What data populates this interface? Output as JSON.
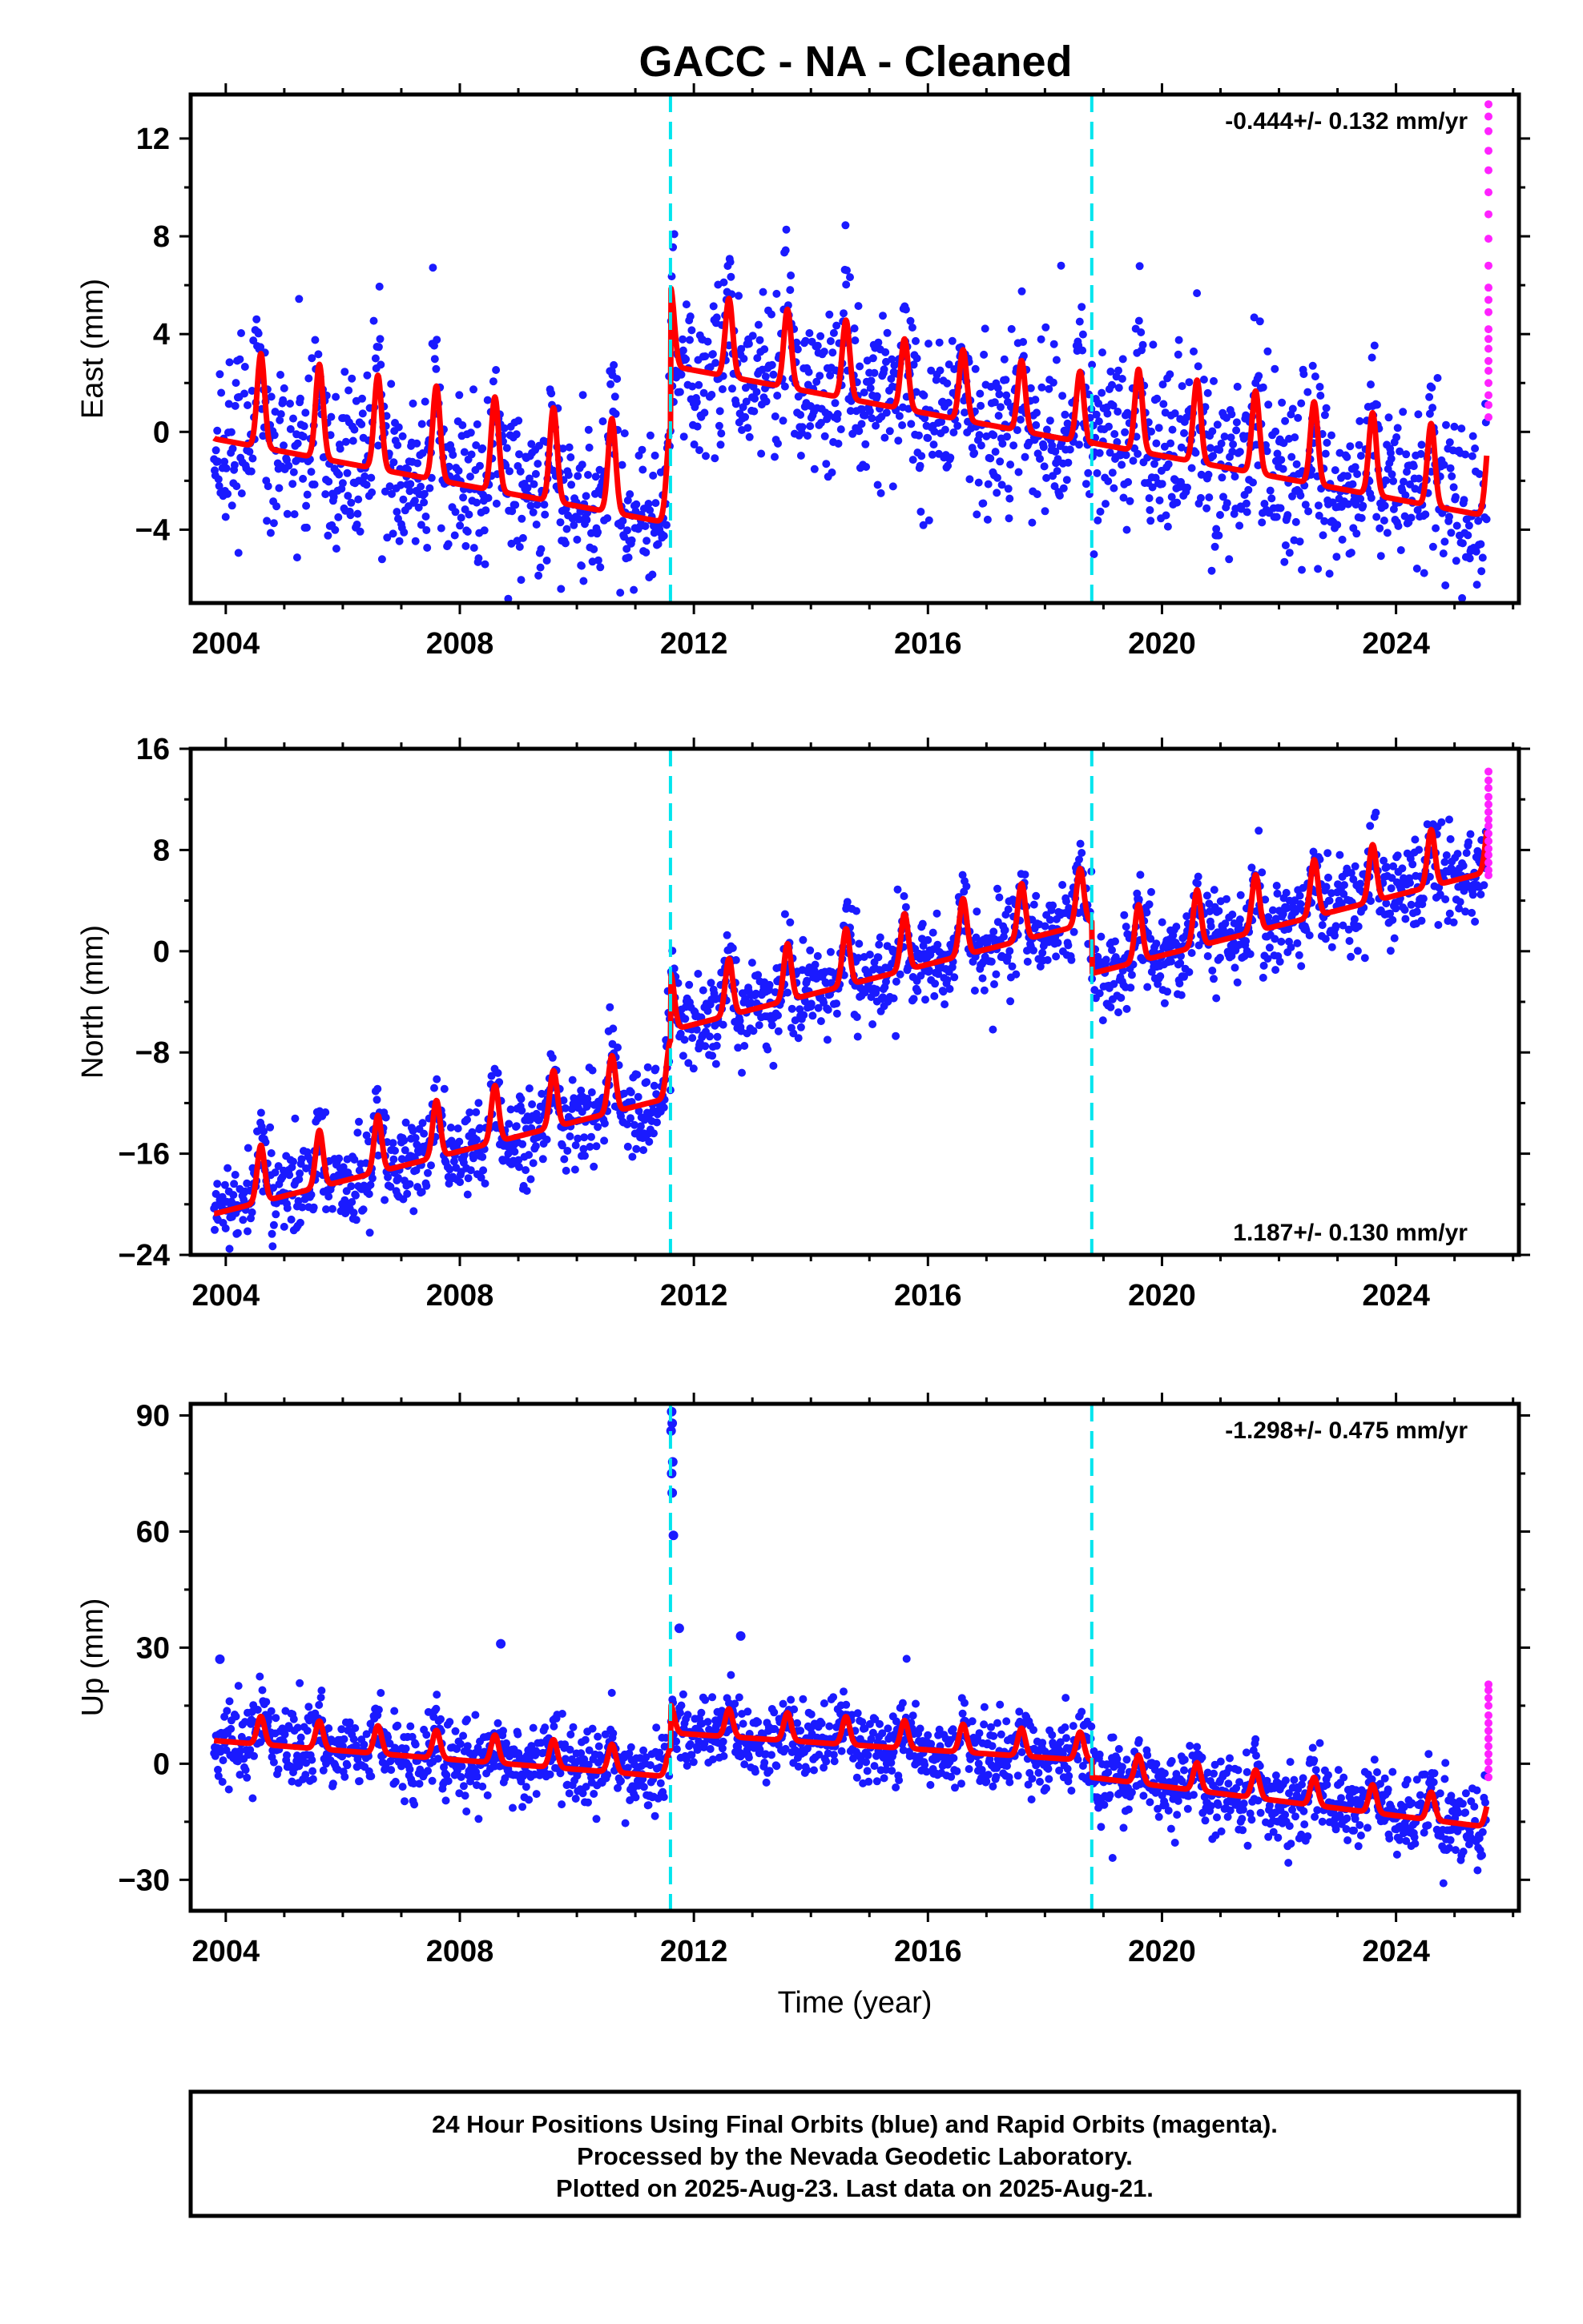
{
  "title": "GACC  - NA - Cleaned",
  "footer": {
    "lines": [
      "24 Hour Positions Using Final Orbits (blue) and Rapid Orbits (magenta).",
      "Processed by the Nevada Geodetic Laboratory.",
      "Plotted on 2025-Aug-23. Last data on 2025-Aug-21."
    ]
  },
  "colors": {
    "final": "#1a1aff",
    "rapid": "#ff22ff",
    "model": "#ff0000",
    "offset_line": "#00e5ee"
  },
  "chart_data": [
    {
      "type": "scatter",
      "ylabel": "East (mm)",
      "xlabel": "",
      "xlim": [
        2003.4,
        2026.1
      ],
      "ylim": [
        -7,
        13.8
      ],
      "xticks": [
        2004,
        2008,
        2012,
        2016,
        2020,
        2024
      ],
      "yticks": [
        12,
        8,
        4,
        0,
        -4
      ],
      "ytick_labels": [
        "12",
        "8",
        "4",
        "0",
        "−4"
      ],
      "rate_label": "-0.444+/- 0.132 mm/yr",
      "rate_position": "top-right",
      "offset_epochs": [
        2011.6,
        2018.8
      ],
      "data_range": [
        2003.8,
        2025.55
      ],
      "model": {
        "segments": [
          {
            "x0": 2003.8,
            "x1": 2011.6,
            "level": 0.8,
            "trend": -0.444,
            "amp": 2.4,
            "phase": 0.6
          },
          {
            "x0": 2011.6,
            "x1": 2015.0,
            "level": 3.6,
            "trend": -0.444,
            "amp": 2.0,
            "phase": 0.6
          },
          {
            "x0": 2015.0,
            "x1": 2018.8,
            "level": 2.0,
            "trend": -0.444,
            "amp": 1.8,
            "phase": 0.6
          },
          {
            "x0": 2018.8,
            "x1": 2025.55,
            "level": 0.5,
            "trend": -0.444,
            "amp": 2.1,
            "phase": 0.6
          }
        ]
      },
      "scatter": 1.7,
      "series": [
        {
          "name": "Final Orbits",
          "color": "#1a1aff"
        },
        {
          "name": "Rapid Orbits",
          "color": "#ff22ff",
          "x": 2025.58,
          "values": [
            13.4,
            12.9,
            12.3,
            11.5,
            10.7,
            9.8,
            8.9,
            7.9,
            6.8,
            5.9,
            5.4,
            4.9,
            4.2,
            3.8,
            3.4,
            2.9,
            2.5,
            2.0,
            1.5,
            1.1,
            0.6
          ]
        }
      ]
    },
    {
      "type": "scatter",
      "ylabel": "North (mm)",
      "xlabel": "",
      "xlim": [
        2003.4,
        2026.1
      ],
      "ylim": [
        -24,
        16
      ],
      "xticks": [
        2004,
        2008,
        2012,
        2016,
        2020,
        2024
      ],
      "yticks": [
        16,
        8,
        0,
        -8,
        -16,
        -24
      ],
      "ytick_labels": [
        "16",
        "8",
        "0",
        "−8",
        "−16",
        "−24"
      ],
      "rate_label": "1.187+/- 0.130 mm/yr",
      "rate_position": "bottom-right",
      "offset_epochs": [
        2011.6,
        2018.8
      ],
      "data_range": [
        2003.8,
        2025.55
      ],
      "model": {
        "segments": [
          {
            "x0": 2003.8,
            "x1": 2011.6,
            "level": -19.5,
            "trend": 1.18,
            "amp": 2.8,
            "phase": 0.6
          },
          {
            "x0": 2011.6,
            "x1": 2018.8,
            "level": -5.0,
            "trend": 1.187,
            "amp": 2.8,
            "phase": 0.6
          },
          {
            "x0": 2018.8,
            "x1": 2025.55,
            "level": -0.5,
            "trend": 1.187,
            "amp": 2.8,
            "phase": 0.6
          }
        ]
      },
      "scatter": 1.7,
      "series": [
        {
          "name": "Final Orbits",
          "color": "#1a1aff"
        },
        {
          "name": "Rapid Orbits",
          "color": "#ff22ff",
          "x": 2025.58,
          "values": [
            14.2,
            13.5,
            12.9,
            12.2,
            11.6,
            11.0,
            10.4,
            9.9,
            9.3,
            8.7,
            8.1,
            7.6,
            7.0,
            6.4,
            6.0
          ]
        }
      ]
    },
    {
      "type": "scatter",
      "ylabel": "Up (mm)",
      "xlabel": "Time (year)",
      "xlim": [
        2003.4,
        2026.1
      ],
      "ylim": [
        -38,
        93
      ],
      "xticks": [
        2004,
        2008,
        2012,
        2016,
        2020,
        2024
      ],
      "yticks": [
        90,
        60,
        30,
        0,
        -30
      ],
      "ytick_labels": [
        "90",
        "60",
        "30",
        "0",
        "−30"
      ],
      "rate_label": "-1.298+/- 0.475 mm/yr",
      "rate_position": "top-right",
      "offset_epochs": [
        2011.6,
        2018.8
      ],
      "data_range": [
        2003.8,
        2025.55
      ],
      "model": {
        "segments": [
          {
            "x0": 2003.8,
            "x1": 2011.6,
            "level": 8.0,
            "trend": -1.2,
            "amp": 4.5,
            "phase": 0.6
          },
          {
            "x0": 2011.6,
            "x1": 2018.8,
            "level": 10.0,
            "trend": -1.0,
            "amp": 4.5,
            "phase": 0.6
          },
          {
            "x0": 2018.8,
            "x1": 2025.55,
            "level": -1.5,
            "trend": -1.9,
            "amp": 4.5,
            "phase": 0.6
          }
        ]
      },
      "scatter": 5.0,
      "outliers": [
        {
          "x": 2011.62,
          "y": 91
        },
        {
          "x": 2011.63,
          "y": 88
        },
        {
          "x": 2011.61,
          "y": 86
        },
        {
          "x": 2011.64,
          "y": 78
        },
        {
          "x": 2011.62,
          "y": 75
        },
        {
          "x": 2011.63,
          "y": 70
        },
        {
          "x": 2011.65,
          "y": 59
        },
        {
          "x": 2011.75,
          "y": 35
        },
        {
          "x": 2008.7,
          "y": 31
        },
        {
          "x": 2012.8,
          "y": 33
        },
        {
          "x": 2003.9,
          "y": 27
        }
      ],
      "series": [
        {
          "name": "Final Orbits",
          "color": "#1a1aff"
        },
        {
          "name": "Rapid Orbits",
          "color": "#ff22ff",
          "x": 2025.58,
          "values": [
            20.5,
            19.0,
            17.0,
            15.0,
            12.5,
            10.5,
            8.5,
            6.5,
            4.5,
            2.5,
            0.5,
            -1.5,
            -3.5
          ]
        }
      ]
    }
  ]
}
